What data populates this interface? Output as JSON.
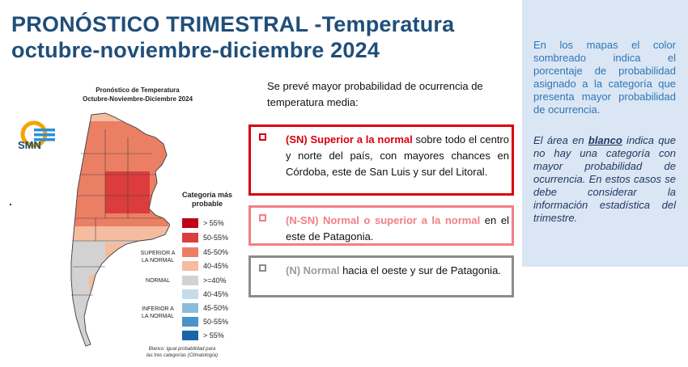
{
  "title": {
    "line1": "PRONÓSTICO TRIMESTRAL -Temperatura",
    "line2": "octubre-noviembre-diciembre 2024"
  },
  "map": {
    "title_line1": "Pronóstico de Temperatura",
    "title_line2": "Octubre-Noviembre-Diciembre 2024",
    "logo_text": "SMN",
    "legend_title_line1": "Categoría más",
    "legend_title_line2": "probable",
    "legend": [
      {
        "label": "> 55%",
        "color": "#c0001c"
      },
      {
        "label": "50-55%",
        "color": "#dc3c3c"
      },
      {
        "label": "45-50%",
        "color": "#eb7f64"
      },
      {
        "label": "40-45%",
        "color": "#f5bca0"
      },
      {
        "label": ">=40%",
        "color": "#d2d2d2"
      },
      {
        "label": "40-45%",
        "color": "#c4dcec"
      },
      {
        "label": "45-50%",
        "color": "#8cbcdc"
      },
      {
        "label": "50-55%",
        "color": "#4a94c8"
      },
      {
        "label": "> 55%",
        "color": "#1a64a8"
      }
    ],
    "category_labels": {
      "superior_line1": "SUPERIOR A",
      "superior_line2": "LA NORMAL",
      "normal": "NORMAL",
      "inferior_line1": "INFERIOR A",
      "inferior_line2": "LA NORMAL"
    },
    "footnote_line1": "Blanco: igual probabilidad para",
    "footnote_line2": "las tres categorías (Climatología)"
  },
  "intro": "Se prevé mayor probabilidad de ocurrencia de temperatura media:",
  "boxes": [
    {
      "key": "(SN) Superior a la normal",
      "rest": " sobre todo el centro y norte del país, con mayores chances en Córdoba, este de San Luis y sur del Litoral.",
      "color": "#d9000d"
    },
    {
      "key": "(N-SN) Normal o superior a la normal",
      "rest": " en el este de Patagonia.",
      "color": "#f07f85"
    },
    {
      "key": "(N) Normal",
      "rest": "  hacia el oeste y sur de Patagonia.",
      "color": "#8c8c8c"
    }
  ],
  "side": {
    "text1": "En los mapas el color sombreado indica el porcentaje de probabilidad asignado a la categoría que presenta mayor probabilidad de ocurrencia.",
    "text2_pre": "El área en ",
    "text2_em": "blanco",
    "text2_post": " indica que no hay una categoría con mayor probabilidad de ocurrencia. En estos casos se debe considerar la información estadística del trimestre."
  }
}
